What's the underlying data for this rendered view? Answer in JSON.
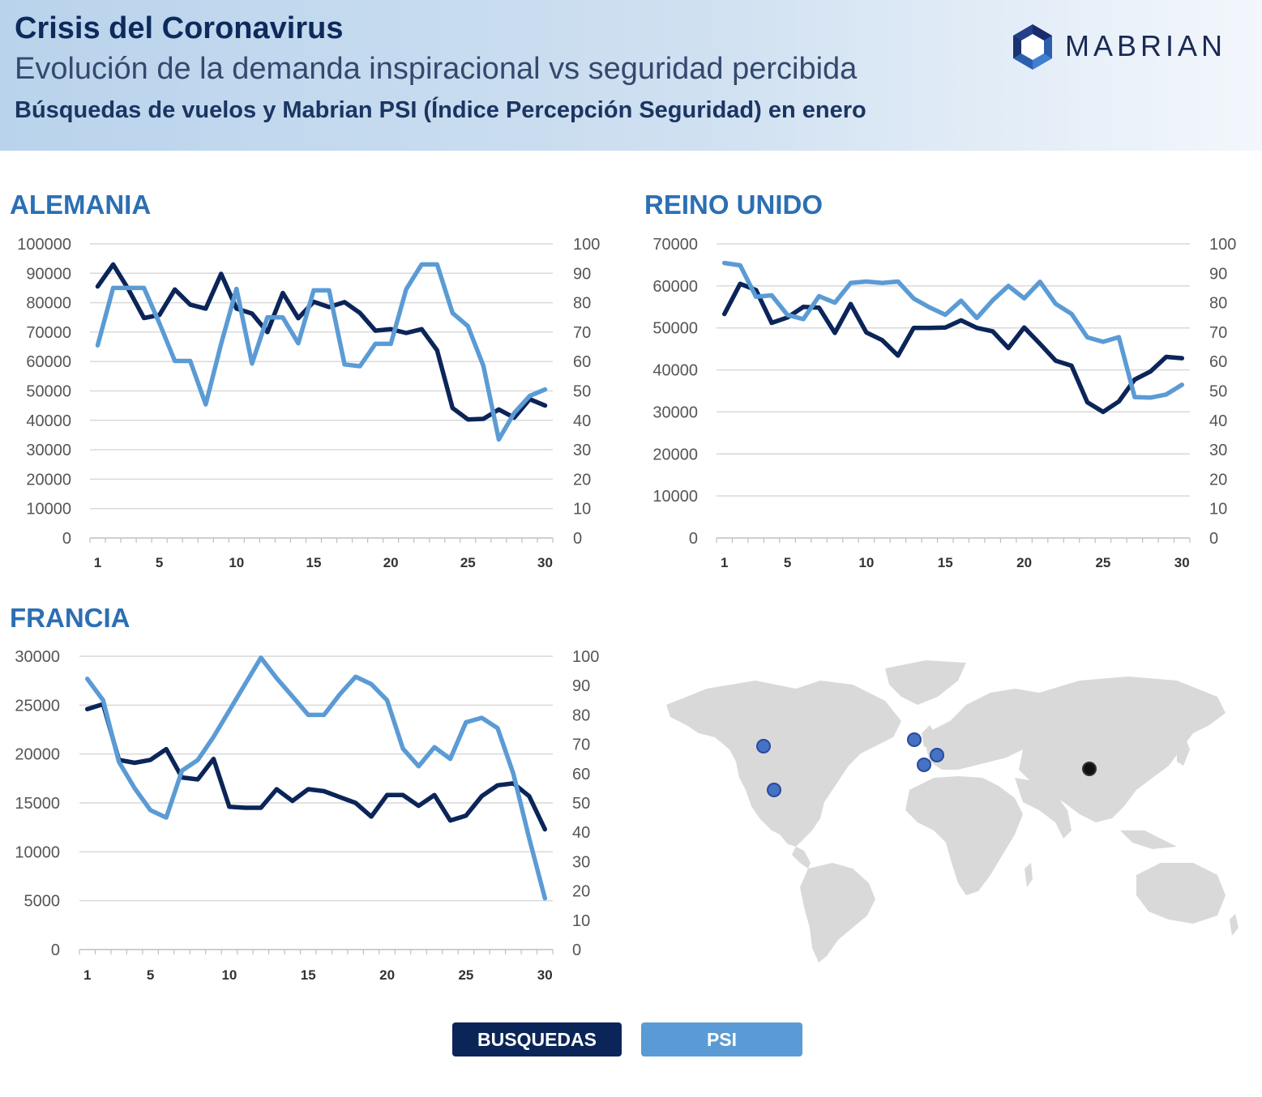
{
  "header": {
    "title": "Crisis del Coronavirus",
    "subtitle": "Evolución de la demanda inspiracional vs seguridad percibida",
    "subtitle2": "Búsquedas de vuelos y Mabrian PSI (Índice Percepción Seguridad) en enero",
    "logo_text": "MABRIAN"
  },
  "colors": {
    "busquedas": "#0b2559",
    "psi": "#5b9bd5",
    "grid": "#d9d9d9",
    "title": "#2c6fb3"
  },
  "legend": {
    "busquedas": "BUSQUEDAS",
    "psi": "PSI"
  },
  "map": {
    "icon": "world-map-icon",
    "markers": [
      {
        "name": "marker-north-america-1",
        "color": "#4472c4"
      },
      {
        "name": "marker-north-america-2",
        "color": "#4472c4"
      },
      {
        "name": "marker-uk",
        "color": "#4472c4"
      },
      {
        "name": "marker-france",
        "color": "#4472c4"
      },
      {
        "name": "marker-germany",
        "color": "#4472c4"
      },
      {
        "name": "marker-china",
        "color": "#111111"
      }
    ]
  },
  "chart_data": [
    {
      "type": "line",
      "title": "ALEMANIA",
      "x": [
        1,
        2,
        3,
        4,
        5,
        6,
        7,
        8,
        9,
        10,
        11,
        12,
        13,
        14,
        15,
        16,
        17,
        18,
        19,
        20,
        21,
        22,
        23,
        24,
        25,
        26,
        27,
        28,
        29,
        30
      ],
      "xticks": [
        "1",
        "5",
        "10",
        "15",
        "20",
        "25",
        "30"
      ],
      "ylim_left": [
        0,
        100000
      ],
      "yticks_left": [
        "0",
        "10000",
        "20000",
        "30000",
        "40000",
        "50000",
        "60000",
        "70000",
        "80000",
        "90000",
        "100000"
      ],
      "ylim_right": [
        0,
        100
      ],
      "yticks_right": [
        "0",
        "10",
        "20",
        "30",
        "40",
        "50",
        "60",
        "70",
        "80",
        "90",
        "100"
      ],
      "series": [
        {
          "name": "BUSQUEDAS",
          "axis": "left",
          "values": [
            85500,
            93000,
            84500,
            74800,
            75800,
            84500,
            79300,
            78000,
            89800,
            78000,
            76300,
            70000,
            83300,
            74700,
            80300,
            78500,
            80200,
            76500,
            70500,
            71000,
            69700,
            71000,
            63800,
            44200,
            40300,
            40500,
            43700,
            40900,
            47200,
            45000
          ]
        },
        {
          "name": "PSI",
          "axis": "right",
          "values": [
            65.5,
            85,
            85,
            85,
            73,
            60.2,
            60.2,
            45.4,
            66,
            84.7,
            59.3,
            75,
            75,
            66.2,
            84.2,
            84.2,
            59,
            58.4,
            66,
            66,
            84.6,
            93,
            93,
            76.5,
            72,
            58.5,
            33.5,
            42.5,
            48.3,
            50.5
          ]
        }
      ]
    },
    {
      "type": "line",
      "title": "REINO UNIDO",
      "x": [
        1,
        2,
        3,
        4,
        5,
        6,
        7,
        8,
        9,
        10,
        11,
        12,
        13,
        14,
        15,
        16,
        17,
        18,
        19,
        20,
        21,
        22,
        23,
        24,
        25,
        26,
        27,
        28,
        29,
        30
      ],
      "xticks": [
        "1",
        "5",
        "10",
        "15",
        "20",
        "25",
        "30"
      ],
      "ylim_left": [
        0,
        70000
      ],
      "yticks_left": [
        "0",
        "10000",
        "20000",
        "30000",
        "40000",
        "50000",
        "60000",
        "70000"
      ],
      "ylim_right": [
        0,
        100
      ],
      "yticks_right": [
        "0",
        "10",
        "20",
        "30",
        "40",
        "50",
        "60",
        "70",
        "80",
        "90",
        "100"
      ],
      "series": [
        {
          "name": "BUSQUEDAS",
          "axis": "left",
          "values": [
            53300,
            60500,
            59000,
            51200,
            52500,
            55000,
            54800,
            48800,
            55700,
            48900,
            47100,
            43400,
            50000,
            50000,
            50100,
            51800,
            50000,
            49200,
            45200,
            50100,
            46200,
            42200,
            41000,
            32300,
            30000,
            32500,
            37700,
            39600,
            43100,
            42800
          ]
        },
        {
          "name": "PSI",
          "axis": "right",
          "values": [
            93.5,
            92.7,
            82,
            82.5,
            75.8,
            74.4,
            82.2,
            80,
            86.7,
            87.2,
            86.7,
            87.2,
            81.4,
            78.4,
            75.9,
            80.7,
            74.8,
            80.8,
            85.7,
            81.5,
            87.1,
            79.6,
            76.2,
            68.2,
            66.7,
            68.3,
            47.9,
            47.7,
            48.8,
            52.1
          ]
        }
      ]
    },
    {
      "type": "line",
      "title": "FRANCIA",
      "x": [
        1,
        2,
        3,
        4,
        5,
        6,
        7,
        8,
        9,
        10,
        11,
        12,
        13,
        14,
        15,
        16,
        17,
        18,
        19,
        20,
        21,
        22,
        23,
        24,
        25,
        26,
        27,
        28,
        29,
        30
      ],
      "xticks": [
        "1",
        "5",
        "10",
        "15",
        "20",
        "25",
        "30"
      ],
      "ylim_left": [
        0,
        30000
      ],
      "yticks_left": [
        "0",
        "5000",
        "10000",
        "15000",
        "20000",
        "25000",
        "30000"
      ],
      "ylim_right": [
        0,
        100
      ],
      "yticks_right": [
        "0",
        "10",
        "20",
        "30",
        "40",
        "50",
        "60",
        "70",
        "80",
        "90",
        "100"
      ],
      "series": [
        {
          "name": "BUSQUEDAS",
          "axis": "left",
          "values": [
            24600,
            25100,
            19400,
            19100,
            19400,
            20500,
            17600,
            17400,
            19500,
            14600,
            14500,
            14500,
            16400,
            15200,
            16400,
            16200,
            15600,
            15000,
            13600,
            15800,
            15800,
            14700,
            15800,
            13200,
            13700,
            15700,
            16800,
            17000,
            15700,
            12300
          ]
        },
        {
          "name": "PSI",
          "axis": "right",
          "values": [
            92.3,
            85,
            64,
            55,
            47.5,
            45,
            61,
            64.6,
            72.5,
            81.5,
            90.5,
            99.5,
            92.5,
            86.3,
            80,
            80,
            87,
            93,
            90.5,
            85,
            68.5,
            62.5,
            69,
            65,
            77.5,
            79,
            75.5,
            60,
            38,
            17.5
          ]
        }
      ]
    }
  ]
}
